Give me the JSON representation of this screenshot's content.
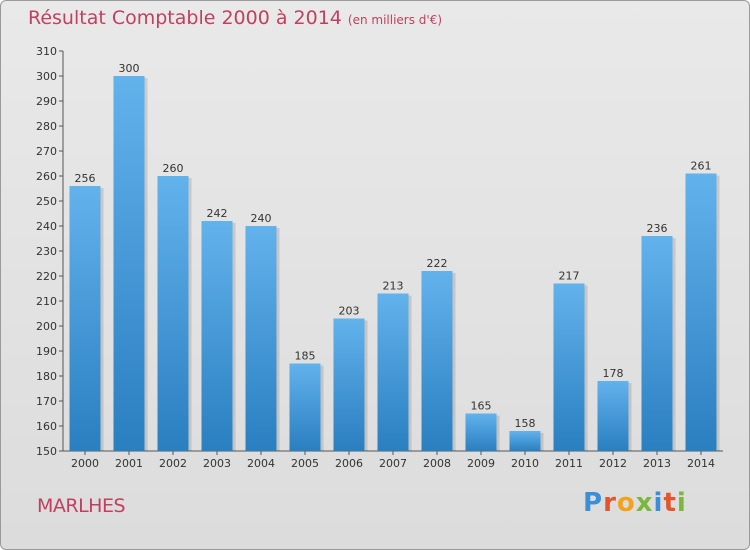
{
  "chart_data": {
    "type": "bar",
    "title": "Résultat Comptable 2000 à 2014",
    "subtitle": "(en milliers d'€)",
    "categories": [
      "2000",
      "2001",
      "2002",
      "2003",
      "2004",
      "2005",
      "2006",
      "2007",
      "2008",
      "2009",
      "2010",
      "2011",
      "2012",
      "2013",
      "2014"
    ],
    "values": [
      256,
      300,
      260,
      242,
      240,
      185,
      203,
      213,
      222,
      165,
      158,
      217,
      178,
      236,
      261
    ],
    "ylim": [
      150,
      310
    ],
    "yticks": [
      150,
      160,
      170,
      180,
      190,
      200,
      210,
      220,
      230,
      240,
      250,
      260,
      270,
      280,
      290,
      300,
      310
    ],
    "xlabel": "",
    "ylabel": "",
    "grid": false,
    "bar_color_top": "#62b2ec",
    "bar_color_bottom": "#2a7fc0"
  },
  "commune": "MARLHES",
  "logo": {
    "letters": [
      "P",
      "r",
      "o",
      "x",
      "i",
      "t",
      "i"
    ],
    "colors": [
      "#3a8fd8",
      "#e2562d",
      "#f2a21c",
      "#7ab83a",
      "#3a8fd8",
      "#e2562d",
      "#7ab83a"
    ]
  }
}
